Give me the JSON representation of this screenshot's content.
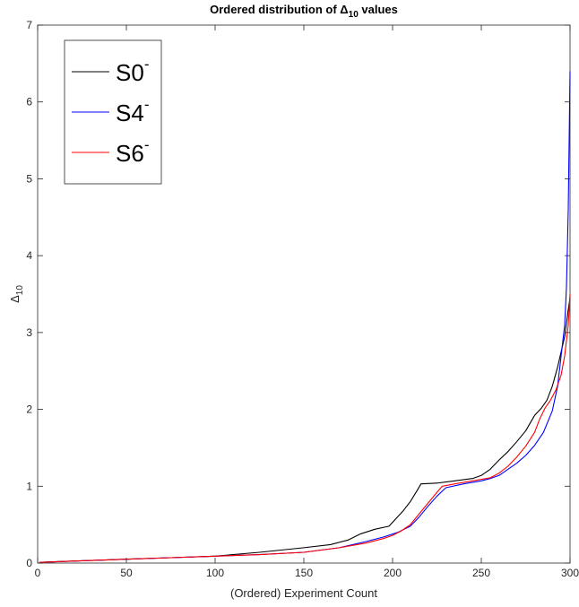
{
  "chart_data": {
    "type": "line",
    "title": {
      "prefix": "Ordered distribution of ",
      "symbol": "Δ",
      "subscript": "10",
      "suffix": " values"
    },
    "xlabel": "(Ordered) Experiment Count",
    "ylabel": {
      "symbol": "Δ",
      "subscript": "10"
    },
    "xlim": [
      0,
      300
    ],
    "ylim": [
      0,
      7
    ],
    "xticks": [
      0,
      50,
      100,
      150,
      200,
      250,
      300
    ],
    "yticks": [
      0,
      1,
      2,
      3,
      4,
      5,
      6,
      7
    ],
    "grid": false,
    "legend_position": "top-left",
    "series": [
      {
        "name": "S0",
        "superscript": "-",
        "color": "#000000",
        "x": [
          1,
          25,
          50,
          75,
          100,
          125,
          150,
          165,
          175,
          182,
          190,
          198,
          202,
          206,
          210,
          214,
          216,
          225,
          235,
          245,
          250,
          255,
          260,
          265,
          270,
          275,
          280,
          284,
          287,
          290,
          293,
          295,
          297,
          299,
          300
        ],
        "y": [
          0.01,
          0.03,
          0.05,
          0.07,
          0.09,
          0.14,
          0.2,
          0.24,
          0.3,
          0.38,
          0.44,
          0.48,
          0.58,
          0.68,
          0.8,
          0.95,
          1.03,
          1.04,
          1.07,
          1.1,
          1.14,
          1.22,
          1.34,
          1.45,
          1.58,
          1.72,
          1.92,
          2.02,
          2.12,
          2.3,
          2.55,
          2.75,
          2.95,
          3.3,
          3.45
        ]
      },
      {
        "name": "S4",
        "superscript": "-",
        "color": "#0000ff",
        "x": [
          1,
          25,
          50,
          75,
          100,
          125,
          150,
          170,
          185,
          195,
          203,
          210,
          215,
          220,
          225,
          230,
          240,
          250,
          255,
          260,
          265,
          270,
          275,
          280,
          285,
          290,
          293,
          295,
          297,
          298,
          299,
          300
        ],
        "y": [
          0.01,
          0.03,
          0.05,
          0.07,
          0.09,
          0.11,
          0.14,
          0.2,
          0.28,
          0.34,
          0.4,
          0.48,
          0.6,
          0.74,
          0.87,
          0.98,
          1.03,
          1.07,
          1.1,
          1.14,
          1.22,
          1.3,
          1.4,
          1.53,
          1.7,
          1.98,
          2.3,
          2.7,
          3.1,
          3.6,
          4.6,
          6.4
        ]
      },
      {
        "name": "S6",
        "superscript": "-",
        "color": "#ff0000",
        "x": [
          1,
          25,
          50,
          75,
          100,
          125,
          150,
          170,
          185,
          195,
          200,
          205,
          210,
          215,
          220,
          225,
          228,
          235,
          245,
          255,
          260,
          265,
          270,
          275,
          280,
          283,
          286,
          289,
          292,
          295,
          297,
          299,
          300
        ],
        "y": [
          0.01,
          0.03,
          0.05,
          0.07,
          0.09,
          0.11,
          0.14,
          0.2,
          0.26,
          0.32,
          0.36,
          0.42,
          0.5,
          0.64,
          0.78,
          0.92,
          1.0,
          1.03,
          1.07,
          1.11,
          1.17,
          1.26,
          1.38,
          1.52,
          1.7,
          1.88,
          2.02,
          2.12,
          2.25,
          2.45,
          2.7,
          3.1,
          3.5
        ]
      }
    ]
  }
}
